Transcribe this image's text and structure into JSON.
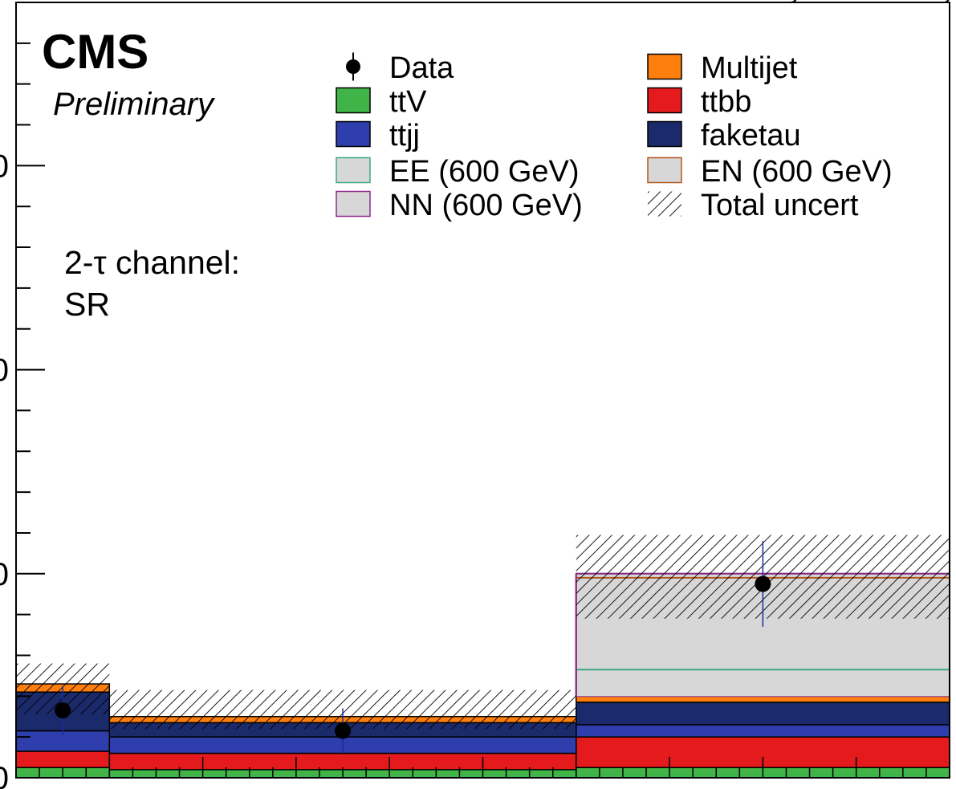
{
  "chart_data": {
    "type": "bar",
    "stacked": true,
    "experiment_label": "CMS",
    "status_label": "Preliminary",
    "channel_label_line1": "2-τ channel:",
    "channel_label_line2": "SR",
    "title": "",
    "xlabel": "",
    "ylabel": "",
    "bin_edges": [
      0.0,
      0.2,
      1.2,
      2.0
    ],
    "ylim": [
      0,
      38
    ],
    "grid": false,
    "legend_position": "top-right",
    "y_tick_labels": [
      {
        "value": 0,
        "label": "0"
      },
      {
        "value": 10,
        "label": "0"
      },
      {
        "value": 20,
        "label": "0"
      },
      {
        "value": 30,
        "label": "0"
      }
    ],
    "series": [
      {
        "name": "ttV",
        "values": [
          0.5,
          0.4,
          0.5
        ],
        "color": "#41b447"
      },
      {
        "name": "ttbb",
        "values": [
          0.8,
          0.8,
          1.5
        ],
        "color": "#e41a1c"
      },
      {
        "name": "ttjj",
        "values": [
          1.0,
          0.8,
          0.6
        ],
        "color": "#2e3fad"
      },
      {
        "name": "faketau",
        "values": [
          1.9,
          0.7,
          1.1
        ],
        "color": "#1b2a6b"
      },
      {
        "name": "Multijet",
        "values": [
          0.4,
          0.3,
          0.3
        ],
        "color": "#ff7f0e"
      }
    ],
    "signals": [
      {
        "name": "EE (600 GeV)",
        "values": [
          0.0,
          0.0,
          5.3
        ],
        "color": "#3aa880"
      },
      {
        "name": "EN (600 GeV)",
        "values": [
          0.0,
          0.0,
          9.8
        ],
        "color": "#b5561c"
      },
      {
        "name": "NN (600 GeV)",
        "values": [
          0.0,
          0.0,
          10.0
        ],
        "color": "#8a2a8a"
      }
    ],
    "data_points": [
      {
        "x": 0.1,
        "y": 3.3,
        "err_low": 1.2,
        "err_high": 1.2
      },
      {
        "x": 0.7,
        "y": 2.3,
        "err_low": 1.1,
        "err_high": 1.1
      },
      {
        "x": 1.6,
        "y": 9.5,
        "err_low": 2.1,
        "err_high": 2.1
      }
    ],
    "uncertainty_bands": [
      {
        "low": 3.1,
        "high": 5.6
      },
      {
        "low": 2.4,
        "high": 4.3
      },
      {
        "low": 7.8,
        "high": 11.9
      }
    ],
    "legend": [
      {
        "label": "Data",
        "kind": "marker",
        "color": "#000000"
      },
      {
        "label": "Multijet",
        "kind": "fill",
        "color": "#ff7f0e",
        "stroke": "#000000"
      },
      {
        "label": "ttV",
        "kind": "fill",
        "color": "#41b447",
        "stroke": "#000000"
      },
      {
        "label": "ttbb",
        "kind": "fill",
        "color": "#e41a1c",
        "stroke": "#000000"
      },
      {
        "label": "ttjj",
        "kind": "fill",
        "color": "#2e3fad",
        "stroke": "#000000"
      },
      {
        "label": "faketau",
        "kind": "fill",
        "color": "#1b2a6b",
        "stroke": "#000000"
      },
      {
        "label": "EE (600 GeV)",
        "kind": "fill",
        "color": "#d7d7d7",
        "stroke": "#3aa880"
      },
      {
        "label": "EN (600 GeV)",
        "kind": "fill",
        "color": "#d7d7d7",
        "stroke": "#b5561c"
      },
      {
        "label": "NN (600 GeV)",
        "kind": "fill",
        "color": "#d7d7d7",
        "stroke": "#8a2a8a"
      },
      {
        "label": "Total uncert",
        "kind": "hatch",
        "color": "#000000"
      }
    ]
  }
}
